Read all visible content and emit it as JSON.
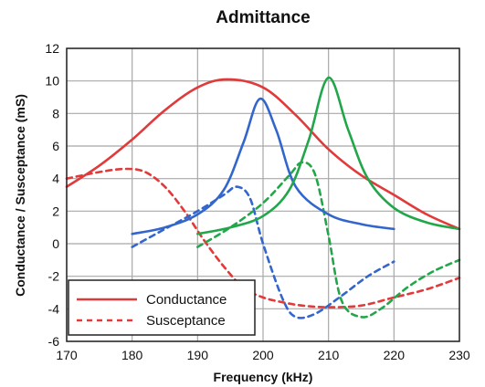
{
  "chart_data": {
    "type": "line",
    "title": "Admittance",
    "xlabel": "Frequency (kHz)",
    "ylabel": "Conductance / Susceptance  (mS)",
    "xlim": [
      170,
      230
    ],
    "ylim": [
      -6,
      12
    ],
    "xticks": [
      170,
      180,
      190,
      200,
      210,
      220,
      230
    ],
    "yticks": [
      -6,
      -4,
      -2,
      0,
      2,
      4,
      6,
      8,
      10,
      12
    ],
    "grid": true,
    "legend": {
      "position": "bottom-left",
      "entries": [
        {
          "label": "Conductance",
          "style": "solid",
          "color": "#e03a3a"
        },
        {
          "label": "Susceptance",
          "style": "dashed",
          "color": "#e03a3a"
        }
      ]
    },
    "series": [
      {
        "kind": "conductance",
        "color": "#e03a3a",
        "style": "solid",
        "x": [
          170,
          175,
          180,
          185,
          190,
          194.5,
          200,
          205,
          210,
          215,
          220,
          225,
          230
        ],
        "y": [
          3.5,
          4.8,
          6.4,
          8.2,
          9.6,
          10.1,
          9.6,
          7.9,
          5.8,
          4.2,
          3.0,
          1.8,
          0.9
        ]
      },
      {
        "kind": "susceptance",
        "color": "#e03a3a",
        "style": "dashed",
        "x": [
          170,
          175,
          179,
          182,
          185,
          188,
          191,
          194,
          197,
          200,
          203,
          206,
          210,
          215,
          220,
          225,
          230
        ],
        "y": [
          4.0,
          4.4,
          4.6,
          4.4,
          3.5,
          2.0,
          0.2,
          -1.4,
          -2.7,
          -3.3,
          -3.6,
          -3.8,
          -3.9,
          -3.8,
          -3.3,
          -2.8,
          -2.1
        ]
      },
      {
        "kind": "conductance",
        "color": "#3366cc",
        "style": "solid",
        "x": [
          180,
          185,
          190,
          194,
          197,
          199.5,
          202,
          205,
          210,
          215,
          220
        ],
        "y": [
          0.6,
          1.0,
          1.8,
          3.3,
          6.2,
          8.9,
          7.0,
          3.5,
          1.8,
          1.2,
          0.9
        ]
      },
      {
        "kind": "susceptance",
        "color": "#3366cc",
        "style": "dashed",
        "x": [
          180,
          185,
          190,
          194,
          196,
          198,
          200,
          203,
          205,
          208,
          212,
          216,
          220
        ],
        "y": [
          -0.2,
          0.9,
          2.0,
          3.0,
          3.5,
          2.8,
          0.0,
          -3.4,
          -4.5,
          -4.3,
          -3.2,
          -2.0,
          -1.1
        ]
      },
      {
        "kind": "conductance",
        "color": "#22a64a",
        "style": "solid",
        "x": [
          190,
          195,
          200,
          204,
          207,
          210,
          213,
          216,
          220,
          225,
          230
        ],
        "y": [
          0.6,
          1.0,
          1.7,
          3.3,
          6.4,
          10.2,
          7.0,
          4.0,
          2.2,
          1.3,
          0.9
        ]
      },
      {
        "kind": "susceptance",
        "color": "#22a64a",
        "style": "dashed",
        "x": [
          190,
          195,
          200,
          204,
          206,
          208,
          210,
          212,
          215,
          218,
          222,
          226,
          230
        ],
        "y": [
          -0.2,
          1.0,
          2.5,
          4.2,
          5.0,
          4.2,
          0.5,
          -3.5,
          -4.5,
          -4.0,
          -2.7,
          -1.7,
          -1.0
        ]
      }
    ]
  }
}
